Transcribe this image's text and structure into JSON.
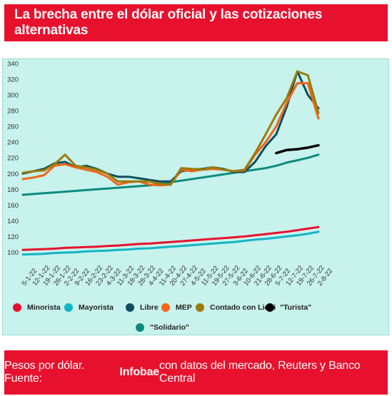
{
  "header": {
    "title": "La brecha entre el dólar oficial y las cotizaciones alternativas"
  },
  "footer": {
    "prefix": "Pesos por dólar. Fuente: ",
    "source": "Infobae",
    "suffix": " con datos del mercado, Reuters y Banco Central"
  },
  "chart_data": {
    "type": "line",
    "ylim": [
      95,
      340
    ],
    "yticks": [
      100,
      120,
      140,
      160,
      180,
      200,
      220,
      240,
      260,
      280,
      300,
      320,
      340
    ],
    "x": [
      "5-1-22",
      "12-1-22",
      "19-1-22",
      "26-1-22",
      "2-2-22",
      "9-2-22",
      "16-2-22",
      "23-2-22",
      "4-3-22",
      "11-3-22",
      "18-3-22",
      "28-3-22",
      "4-4-22",
      "11-4-22",
      "20-4-22",
      "27-4-22",
      "4-5-22",
      "11-5-22",
      "19-5-22",
      "27-5-22",
      "3-6-22",
      "10-6-22",
      "21-6-22",
      "28-6-22",
      "5-7-22",
      "12-7-22",
      "19-7-22",
      "26-7-22",
      "2-8-22"
    ],
    "series": [
      {
        "name": "Minorista",
        "color": "#e8112d",
        "values": [
          103,
          103.5,
          104,
          104.5,
          105.5,
          106,
          106.5,
          107,
          108,
          108.5,
          109.5,
          110.5,
          111,
          112,
          113,
          114,
          115,
          116,
          117,
          118,
          119,
          120,
          121.5,
          123,
          124.5,
          126,
          128,
          130,
          132
        ]
      },
      {
        "name": "Mayorista",
        "color": "#13b5c4",
        "values": [
          97,
          97.5,
          98,
          99,
          99.5,
          100,
          101,
          101.5,
          102,
          103,
          103.5,
          104.5,
          105,
          106,
          107,
          108,
          109,
          110,
          111,
          112,
          113,
          114.5,
          116,
          117,
          118.5,
          120,
          121.5,
          123.5,
          126
        ]
      },
      {
        "name": "Libre",
        "color": "#0d4f5f",
        "values": [
          200,
          203,
          206,
          213,
          215,
          208,
          210,
          206,
          200,
          196,
          196,
          194,
          192,
          190,
          190,
          203,
          205,
          206,
          208,
          206,
          202,
          202,
          215,
          235,
          250,
          285,
          330,
          300,
          283
        ]
      },
      {
        "name": "MEP",
        "color": "#f26418",
        "values": [
          193,
          195,
          198,
          210,
          212,
          208,
          205,
          202,
          196,
          186,
          189,
          190,
          186,
          185,
          186,
          205,
          203,
          205,
          206,
          205,
          203,
          204,
          224,
          240,
          260,
          290,
          315,
          315,
          270
        ]
      },
      {
        "name": "Contado con Liqui",
        "color": "#9a7b0a",
        "values": [
          201,
          203,
          204,
          212,
          224,
          210,
          208,
          205,
          200,
          190,
          190,
          190,
          190,
          187,
          186,
          207,
          206,
          205,
          208,
          205,
          203,
          205,
          226,
          250,
          275,
          296,
          330,
          325,
          277
        ]
      },
      {
        "name": "\"Turista\"",
        "color": "#000000",
        "values": [
          null,
          null,
          null,
          null,
          null,
          null,
          null,
          null,
          null,
          null,
          null,
          null,
          null,
          null,
          null,
          null,
          null,
          null,
          null,
          null,
          null,
          null,
          null,
          null,
          226,
          230,
          231,
          233,
          236
        ]
      },
      {
        "name": "\"Solidario\"",
        "color": "#0d8a7e",
        "values": [
          173,
          174,
          175,
          176,
          177,
          178,
          179,
          180,
          181,
          182,
          183,
          184,
          185,
          187,
          189,
          191,
          193,
          195,
          197,
          199,
          201,
          203,
          205,
          207,
          210,
          214,
          217,
          220,
          224
        ]
      }
    ],
    "grid": false,
    "legend": "bottom"
  }
}
